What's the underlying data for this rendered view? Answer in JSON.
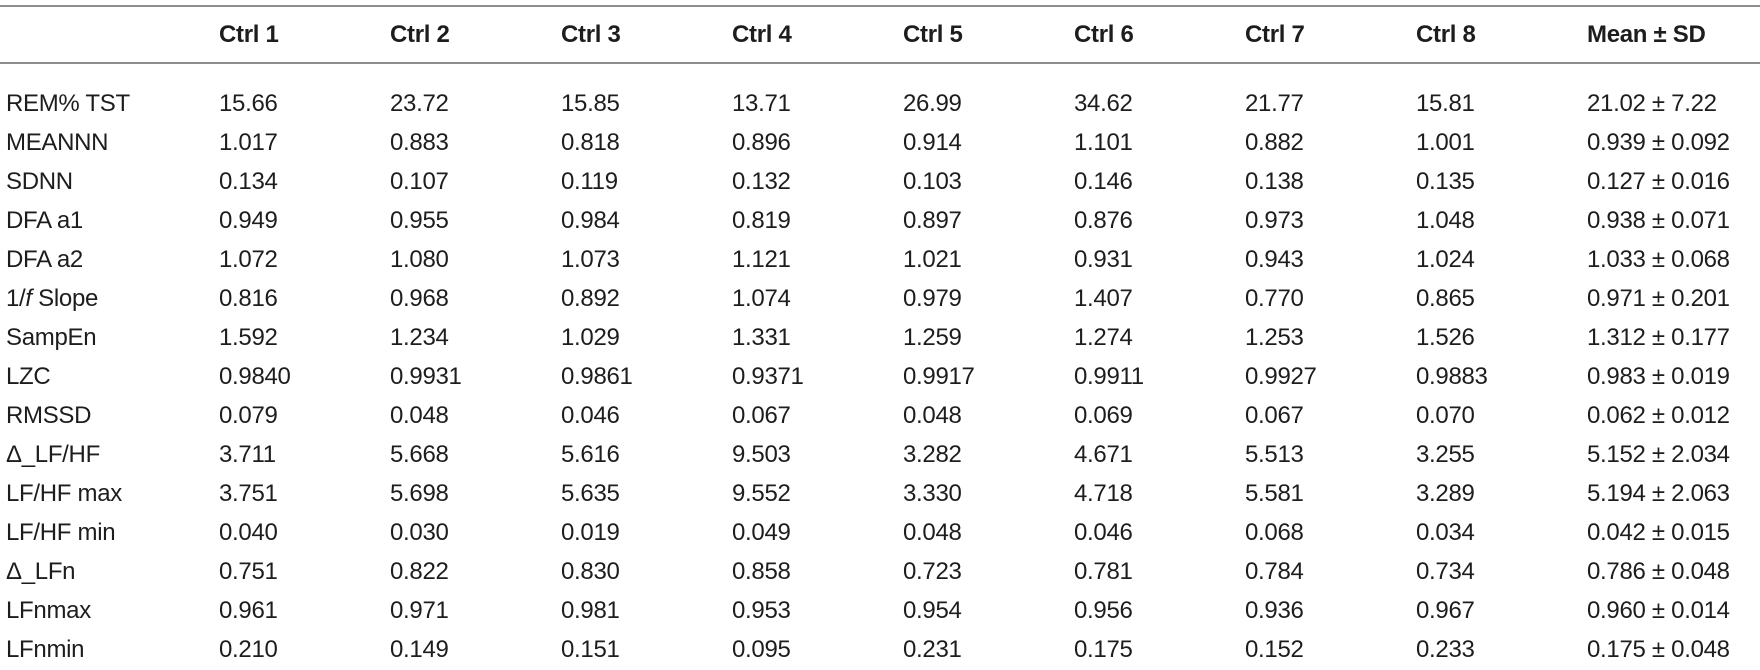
{
  "colors": {
    "text": "#1d1d1d",
    "rule": "#8d8d8d",
    "background": "#ffffff"
  },
  "table": {
    "columns": [
      "",
      "Ctrl 1",
      "Ctrl 2",
      "Ctrl 3",
      "Ctrl 4",
      "Ctrl 5",
      "Ctrl 6",
      "Ctrl 7",
      "Ctrl 8",
      "Mean ± SD"
    ],
    "rows": [
      {
        "label": "REM% TST",
        "values": [
          "15.66",
          "23.72",
          "15.85",
          "13.71",
          "26.99",
          "34.62",
          "21.77",
          "15.81"
        ],
        "mean_sd": "21.02 ± 7.22"
      },
      {
        "label": "MEANNN",
        "values": [
          "1.017",
          "0.883",
          "0.818",
          "0.896",
          "0.914",
          "1.101",
          "0.882",
          "1.001"
        ],
        "mean_sd": "0.939 ± 0.092"
      },
      {
        "label": "SDNN",
        "values": [
          "0.134",
          "0.107",
          "0.119",
          "0.132",
          "0.103",
          "0.146",
          "0.138",
          "0.135"
        ],
        "mean_sd": "0.127 ± 0.016"
      },
      {
        "label": "DFA a1",
        "values": [
          "0.949",
          "0.955",
          "0.984",
          "0.819",
          "0.897",
          "0.876",
          "0.973",
          "1.048"
        ],
        "mean_sd": "0.938 ± 0.071"
      },
      {
        "label": "DFA a2",
        "values": [
          "1.072",
          "1.080",
          "1.073",
          "1.121",
          "1.021",
          "0.931",
          "0.943",
          "1.024"
        ],
        "mean_sd": "1.033 ± 0.068"
      },
      {
        "label": "1/f Slope",
        "values": [
          "0.816",
          "0.968",
          "0.892",
          "1.074",
          "0.979",
          "1.407",
          "0.770",
          "0.865"
        ],
        "mean_sd": "0.971 ± 0.201"
      },
      {
        "label": "SampEn",
        "values": [
          "1.592",
          "1.234",
          "1.029",
          "1.331",
          "1.259",
          "1.274",
          "1.253",
          "1.526"
        ],
        "mean_sd": "1.312 ± 0.177"
      },
      {
        "label": "LZC",
        "values": [
          "0.9840",
          "0.9931",
          "0.9861",
          "0.9371",
          "0.9917",
          "0.9911",
          "0.9927",
          "0.9883"
        ],
        "mean_sd": "0.983 ± 0.019"
      },
      {
        "label": "RMSSD",
        "values": [
          "0.079",
          "0.048",
          "0.046",
          "0.067",
          "0.048",
          "0.069",
          "0.067",
          "0.070"
        ],
        "mean_sd": "0.062 ± 0.012"
      },
      {
        "label": "Δ_LF/HF",
        "values": [
          "3.711",
          "5.668",
          "5.616",
          "9.503",
          "3.282",
          "4.671",
          "5.513",
          "3.255"
        ],
        "mean_sd": "5.152 ± 2.034"
      },
      {
        "label": "LF/HF max",
        "values": [
          "3.751",
          "5.698",
          "5.635",
          "9.552",
          "3.330",
          "4.718",
          "5.581",
          "3.289"
        ],
        "mean_sd": "5.194 ± 2.063"
      },
      {
        "label": "LF/HF min",
        "values": [
          "0.040",
          "0.030",
          "0.019",
          "0.049",
          "0.048",
          "0.046",
          "0.068",
          "0.034"
        ],
        "mean_sd": "0.042 ± 0.015"
      },
      {
        "label": "Δ_LFn",
        "values": [
          "0.751",
          "0.822",
          "0.830",
          "0.858",
          "0.723",
          "0.781",
          "0.784",
          "0.734"
        ],
        "mean_sd": "0.786 ± 0.048"
      },
      {
        "label": "LFnmax",
        "values": [
          "0.961",
          "0.971",
          "0.981",
          "0.953",
          "0.954",
          "0.956",
          "0.936",
          "0.967"
        ],
        "mean_sd": "0.960 ± 0.014"
      },
      {
        "label": "LFnmin",
        "values": [
          "0.210",
          "0.149",
          "0.151",
          "0.095",
          "0.231",
          "0.175",
          "0.152",
          "0.233"
        ],
        "mean_sd": "0.175 ± 0.048"
      }
    ]
  }
}
